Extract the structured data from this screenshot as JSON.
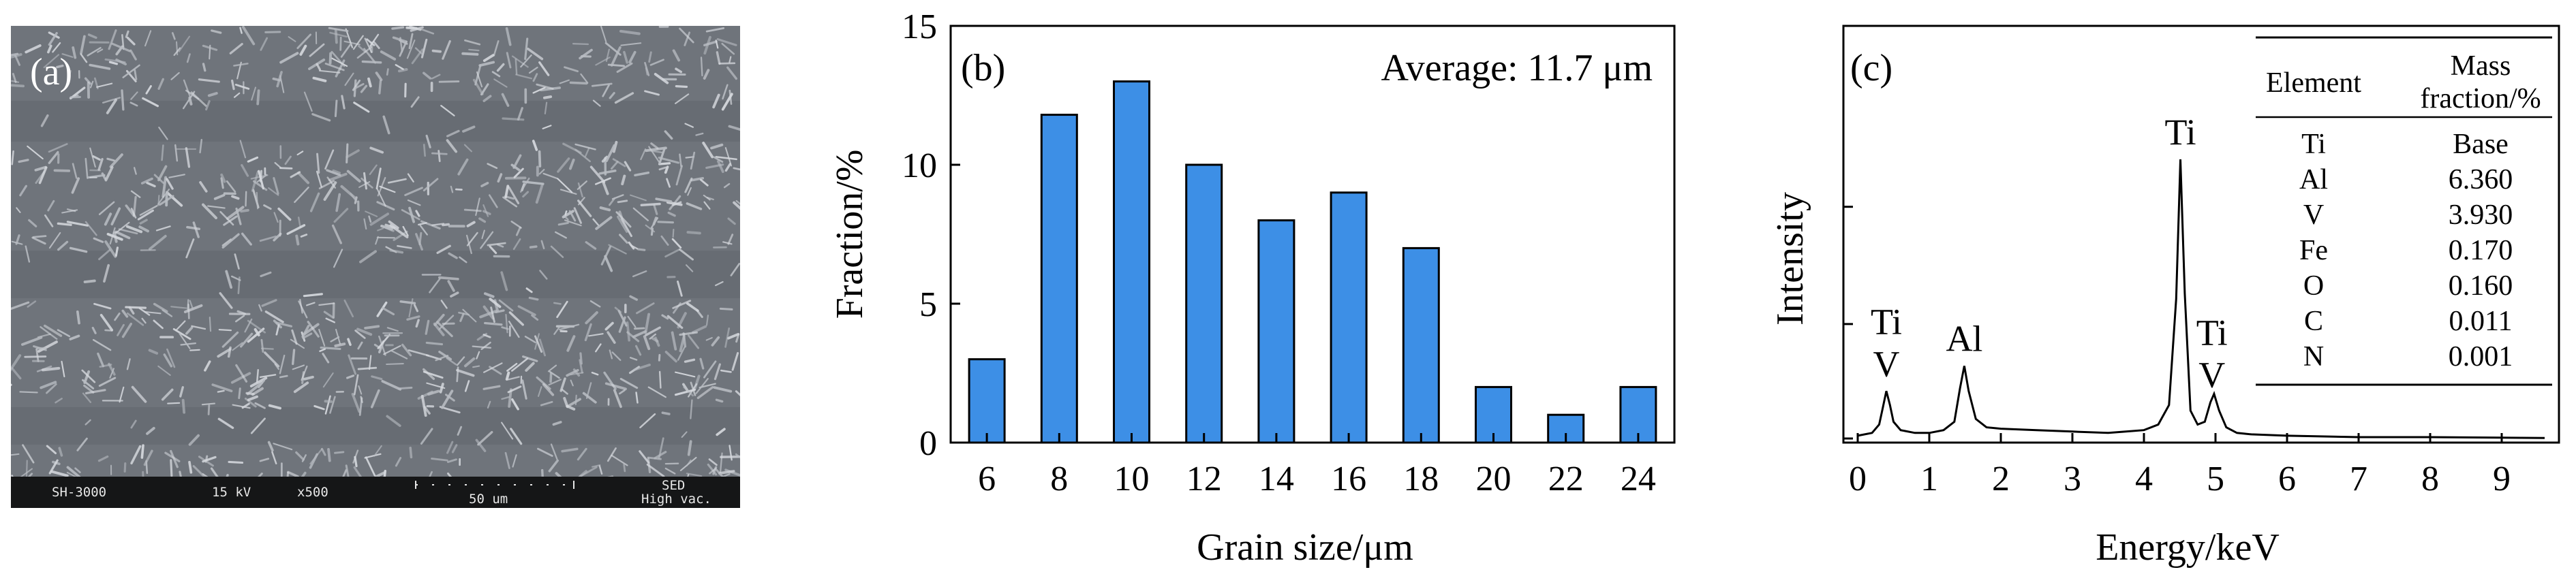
{
  "panel_a": {
    "label": "(a)",
    "footer": {
      "instrument": "SH-3000",
      "voltage": "15 kV",
      "magnification": "x500",
      "scale_bar": "50 um",
      "detector": "SED",
      "vacuum": "High vac."
    }
  },
  "chart_data": [
    {
      "type": "bar",
      "label": "(b)",
      "annotation": "Average: 11.7 μm",
      "categories": [
        "6",
        "8",
        "10",
        "12",
        "14",
        "16",
        "18",
        "20",
        "22",
        "24"
      ],
      "x": [
        6,
        8,
        10,
        12,
        14,
        16,
        18,
        20,
        22,
        24
      ],
      "values": [
        3,
        11.8,
        13,
        10,
        8,
        9,
        7,
        2,
        1,
        2
      ],
      "xlabel": "Grain size/μm",
      "ylabel": "Fraction/%",
      "ylim": [
        0,
        15
      ],
      "yticks": [
        0,
        5,
        10,
        15
      ],
      "bar_color": "#3d8fe6"
    },
    {
      "type": "line",
      "label": "(c)",
      "xlabel": "Energy/keV",
      "ylabel": "Intensity",
      "xlim": [
        -0.2,
        9.8
      ],
      "xticks": [
        0,
        1,
        2,
        3,
        4,
        5,
        6,
        7,
        8,
        9
      ],
      "x": [
        0,
        0.2,
        0.3,
        0.35,
        0.4,
        0.45,
        0.5,
        0.6,
        0.8,
        1.0,
        1.2,
        1.35,
        1.43,
        1.49,
        1.55,
        1.65,
        1.8,
        2.0,
        2.5,
        3.0,
        3.5,
        4.0,
        4.2,
        4.35,
        4.45,
        4.51,
        4.57,
        4.65,
        4.75,
        4.85,
        4.93,
        4.98,
        5.05,
        5.15,
        5.3,
        5.5,
        6.0,
        7.0,
        8.0,
        9.0,
        9.6
      ],
      "y": [
        0.01,
        0.02,
        0.05,
        0.11,
        0.17,
        0.12,
        0.06,
        0.03,
        0.02,
        0.02,
        0.03,
        0.06,
        0.18,
        0.26,
        0.17,
        0.07,
        0.04,
        0.035,
        0.03,
        0.025,
        0.02,
        0.03,
        0.05,
        0.12,
        0.5,
        1.0,
        0.52,
        0.1,
        0.05,
        0.06,
        0.13,
        0.16,
        0.1,
        0.04,
        0.02,
        0.015,
        0.01,
        0.005,
        0.005,
        0.003,
        0.002
      ],
      "peaks": [
        {
          "lines": [
            "Ti",
            "V"
          ],
          "x": 0.4
        },
        {
          "lines": [
            "Al"
          ],
          "x": 1.49
        },
        {
          "lines": [
            "Ti"
          ],
          "x": 4.51
        },
        {
          "lines": [
            "Ti",
            "V"
          ],
          "x": 4.95
        }
      ],
      "table": {
        "headers": [
          "Element",
          "Mass fraction/%"
        ],
        "rows": [
          [
            "Ti",
            "Base"
          ],
          [
            "Al",
            "6.360"
          ],
          [
            "V",
            "3.930"
          ],
          [
            "Fe",
            "0.170"
          ],
          [
            "O",
            "0.160"
          ],
          [
            "C",
            "0.011"
          ],
          [
            "N",
            "0.001"
          ]
        ]
      }
    }
  ]
}
